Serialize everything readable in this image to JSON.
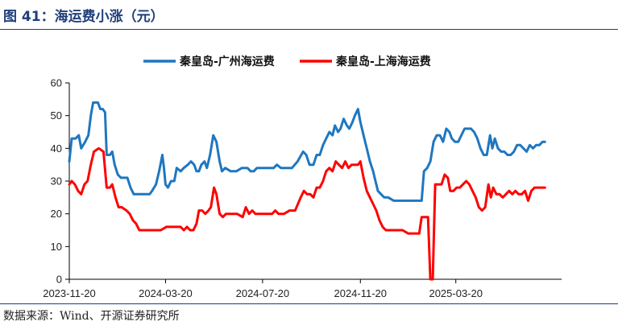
{
  "figure": {
    "title": "图 41：海运费小涨（元）",
    "source": "数据来源：Wind、开源证券研究所"
  },
  "chart_data": {
    "type": "line",
    "title": "",
    "xlabel": "",
    "ylabel": "",
    "ylim": [
      0,
      60
    ],
    "yticks": [
      0,
      10,
      20,
      30,
      40,
      50,
      60
    ],
    "xlim": [
      "2023-11-20",
      "2025-07-31"
    ],
    "xticks": [
      "2023-11-20",
      "2024-03-20",
      "2024-07-20",
      "2024-11-20",
      "2025-03-20"
    ],
    "grid": false,
    "legend_position": "top-center",
    "series": [
      {
        "name": "秦皇岛-广州海运费",
        "color": "#1f77c0",
        "points": [
          [
            "2023-11-20",
            36
          ],
          [
            "2023-11-23",
            43
          ],
          [
            "2023-11-28",
            43
          ],
          [
            "2023-12-02",
            44
          ],
          [
            "2023-12-05",
            40
          ],
          [
            "2023-12-10",
            42
          ],
          [
            "2023-12-14",
            44
          ],
          [
            "2023-12-17",
            50
          ],
          [
            "2023-12-20",
            54
          ],
          [
            "2023-12-26",
            54
          ],
          [
            "2023-12-29",
            52
          ],
          [
            "2024-01-01",
            52
          ],
          [
            "2024-01-04",
            51
          ],
          [
            "2024-01-06",
            38
          ],
          [
            "2024-01-10",
            38
          ],
          [
            "2024-01-13",
            39
          ],
          [
            "2024-01-16",
            35
          ],
          [
            "2024-01-20",
            32
          ],
          [
            "2024-01-24",
            31
          ],
          [
            "2024-01-28",
            31
          ],
          [
            "2024-02-01",
            31
          ],
          [
            "2024-02-05",
            28
          ],
          [
            "2024-02-09",
            26
          ],
          [
            "2024-02-15",
            26
          ],
          [
            "2024-02-22",
            26
          ],
          [
            "2024-02-29",
            26
          ],
          [
            "2024-03-03",
            27
          ],
          [
            "2024-03-08",
            29
          ],
          [
            "2024-03-12",
            33
          ],
          [
            "2024-03-16",
            38
          ],
          [
            "2024-03-18",
            34
          ],
          [
            "2024-03-20",
            29
          ],
          [
            "2024-03-23",
            28
          ],
          [
            "2024-03-27",
            30
          ],
          [
            "2024-03-31",
            30
          ],
          [
            "2024-04-03",
            34
          ],
          [
            "2024-04-08",
            33
          ],
          [
            "2024-04-12",
            34
          ],
          [
            "2024-04-17",
            35
          ],
          [
            "2024-04-21",
            36
          ],
          [
            "2024-04-25",
            35
          ],
          [
            "2024-04-28",
            33
          ],
          [
            "2024-05-01",
            33
          ],
          [
            "2024-05-04",
            35
          ],
          [
            "2024-05-08",
            36
          ],
          [
            "2024-05-11",
            34
          ],
          [
            "2024-05-15",
            38
          ],
          [
            "2024-05-19",
            44
          ],
          [
            "2024-05-23",
            42
          ],
          [
            "2024-05-27",
            36
          ],
          [
            "2024-05-30",
            33
          ],
          [
            "2024-06-03",
            34
          ],
          [
            "2024-06-10",
            33
          ],
          [
            "2024-06-17",
            33
          ],
          [
            "2024-06-24",
            34
          ],
          [
            "2024-07-01",
            34
          ],
          [
            "2024-07-05",
            33
          ],
          [
            "2024-07-09",
            33
          ],
          [
            "2024-07-13",
            34
          ],
          [
            "2024-07-20",
            34
          ],
          [
            "2024-07-27",
            34
          ],
          [
            "2024-08-03",
            34
          ],
          [
            "2024-08-07",
            35
          ],
          [
            "2024-08-12",
            34
          ],
          [
            "2024-08-19",
            34
          ],
          [
            "2024-08-26",
            34
          ],
          [
            "2024-09-02",
            36
          ],
          [
            "2024-09-09",
            39
          ],
          [
            "2024-09-13",
            38
          ],
          [
            "2024-09-17",
            35
          ],
          [
            "2024-09-22",
            35
          ],
          [
            "2024-09-26",
            38
          ],
          [
            "2024-09-30",
            38
          ],
          [
            "2024-10-04",
            41
          ],
          [
            "2024-10-08",
            43
          ],
          [
            "2024-10-12",
            45
          ],
          [
            "2024-10-16",
            44
          ],
          [
            "2024-10-19",
            47
          ],
          [
            "2024-10-23",
            45
          ],
          [
            "2024-10-26",
            46
          ],
          [
            "2024-10-30",
            49
          ],
          [
            "2024-11-03",
            47
          ],
          [
            "2024-11-06",
            46
          ],
          [
            "2024-11-10",
            48
          ],
          [
            "2024-11-13",
            50
          ],
          [
            "2024-11-17",
            52
          ],
          [
            "2024-11-20",
            48
          ],
          [
            "2024-11-24",
            44
          ],
          [
            "2024-11-28",
            40
          ],
          [
            "2024-12-02",
            36
          ],
          [
            "2024-12-06",
            33
          ],
          [
            "2024-12-09",
            30
          ],
          [
            "2024-12-12",
            27
          ],
          [
            "2024-12-16",
            26
          ],
          [
            "2024-12-20",
            25
          ],
          [
            "2024-12-25",
            25
          ],
          [
            "2025-01-01",
            24
          ],
          [
            "2025-01-08",
            24
          ],
          [
            "2025-01-15",
            24
          ],
          [
            "2025-01-22",
            24
          ],
          [
            "2025-01-29",
            24
          ],
          [
            "2025-02-05",
            24
          ],
          [
            "2025-02-08",
            33
          ],
          [
            "2025-02-12",
            34
          ],
          [
            "2025-02-16",
            36
          ],
          [
            "2025-02-20",
            42
          ],
          [
            "2025-02-24",
            44
          ],
          [
            "2025-02-28",
            44
          ],
          [
            "2025-03-04",
            42
          ],
          [
            "2025-03-08",
            46
          ],
          [
            "2025-03-12",
            45
          ],
          [
            "2025-03-15",
            43
          ],
          [
            "2025-03-19",
            42
          ],
          [
            "2025-03-23",
            42
          ],
          [
            "2025-03-27",
            44
          ],
          [
            "2025-03-31",
            46
          ],
          [
            "2025-04-04",
            46
          ],
          [
            "2025-04-08",
            46
          ],
          [
            "2025-04-12",
            45
          ],
          [
            "2025-04-16",
            43
          ],
          [
            "2025-04-20",
            40
          ],
          [
            "2025-04-24",
            38
          ],
          [
            "2025-04-28",
            38
          ],
          [
            "2025-05-02",
            44
          ],
          [
            "2025-05-05",
            40
          ],
          [
            "2025-05-08",
            43
          ],
          [
            "2025-05-12",
            40
          ],
          [
            "2025-05-16",
            39
          ],
          [
            "2025-05-20",
            39
          ],
          [
            "2025-05-24",
            38
          ],
          [
            "2025-05-28",
            38
          ],
          [
            "2025-06-01",
            39
          ],
          [
            "2025-06-05",
            41
          ],
          [
            "2025-06-09",
            41
          ],
          [
            "2025-06-13",
            40
          ],
          [
            "2025-06-17",
            39
          ],
          [
            "2025-06-21",
            41
          ],
          [
            "2025-06-25",
            40
          ],
          [
            "2025-06-29",
            41
          ],
          [
            "2025-07-03",
            41
          ],
          [
            "2025-07-07",
            42
          ],
          [
            "2025-07-10",
            42
          ]
        ]
      },
      {
        "name": "秦皇岛-上海海运费",
        "color": "#ff0000",
        "points": [
          [
            "2023-11-20",
            29
          ],
          [
            "2023-11-23",
            30
          ],
          [
            "2023-11-27",
            29
          ],
          [
            "2023-12-01",
            27
          ],
          [
            "2023-12-05",
            26
          ],
          [
            "2023-12-09",
            29
          ],
          [
            "2023-12-13",
            30
          ],
          [
            "2023-12-17",
            35
          ],
          [
            "2023-12-21",
            39
          ],
          [
            "2023-12-27",
            40
          ],
          [
            "2024-01-02",
            39
          ],
          [
            "2024-01-06",
            28
          ],
          [
            "2024-01-10",
            28
          ],
          [
            "2024-01-13",
            29
          ],
          [
            "2024-01-17",
            25
          ],
          [
            "2024-01-21",
            22
          ],
          [
            "2024-01-25",
            22
          ],
          [
            "2024-01-31",
            21
          ],
          [
            "2024-02-04",
            20
          ],
          [
            "2024-02-08",
            18
          ],
          [
            "2024-02-12",
            17
          ],
          [
            "2024-02-16",
            15
          ],
          [
            "2024-02-22",
            15
          ],
          [
            "2024-02-29",
            15
          ],
          [
            "2024-03-07",
            15
          ],
          [
            "2024-03-14",
            15
          ],
          [
            "2024-03-21",
            16
          ],
          [
            "2024-03-28",
            16
          ],
          [
            "2024-04-04",
            16
          ],
          [
            "2024-04-08",
            16
          ],
          [
            "2024-04-12",
            15
          ],
          [
            "2024-04-16",
            16
          ],
          [
            "2024-04-20",
            15
          ],
          [
            "2024-04-24",
            15
          ],
          [
            "2024-04-28",
            17
          ],
          [
            "2024-05-01",
            21
          ],
          [
            "2024-05-05",
            21
          ],
          [
            "2024-05-09",
            20
          ],
          [
            "2024-05-13",
            21
          ],
          [
            "2024-05-16",
            22
          ],
          [
            "2024-05-20",
            28
          ],
          [
            "2024-05-23",
            26
          ],
          [
            "2024-05-27",
            20
          ],
          [
            "2024-05-31",
            19
          ],
          [
            "2024-06-04",
            20
          ],
          [
            "2024-06-11",
            20
          ],
          [
            "2024-06-18",
            20
          ],
          [
            "2024-06-25",
            19
          ],
          [
            "2024-06-29",
            22
          ],
          [
            "2024-07-03",
            20
          ],
          [
            "2024-07-07",
            21
          ],
          [
            "2024-07-11",
            20
          ],
          [
            "2024-07-18",
            20
          ],
          [
            "2024-07-25",
            20
          ],
          [
            "2024-08-01",
            20
          ],
          [
            "2024-08-05",
            21
          ],
          [
            "2024-08-09",
            20
          ],
          [
            "2024-08-16",
            20
          ],
          [
            "2024-08-23",
            21
          ],
          [
            "2024-08-30",
            21
          ],
          [
            "2024-09-06",
            25
          ],
          [
            "2024-09-10",
            27
          ],
          [
            "2024-09-14",
            26
          ],
          [
            "2024-09-18",
            26
          ],
          [
            "2024-09-22",
            25
          ],
          [
            "2024-09-26",
            28
          ],
          [
            "2024-09-30",
            28
          ],
          [
            "2024-10-04",
            30
          ],
          [
            "2024-10-08",
            33
          ],
          [
            "2024-10-12",
            34
          ],
          [
            "2024-10-16",
            33
          ],
          [
            "2024-10-20",
            36
          ],
          [
            "2024-10-24",
            35
          ],
          [
            "2024-10-28",
            34
          ],
          [
            "2024-11-01",
            36
          ],
          [
            "2024-11-05",
            34
          ],
          [
            "2024-11-09",
            35
          ],
          [
            "2024-11-13",
            35
          ],
          [
            "2024-11-17",
            35
          ],
          [
            "2024-11-20",
            36
          ],
          [
            "2024-11-24",
            31
          ],
          [
            "2024-11-28",
            27
          ],
          [
            "2024-12-02",
            25
          ],
          [
            "2024-12-06",
            23
          ],
          [
            "2024-12-10",
            21
          ],
          [
            "2024-12-14",
            18
          ],
          [
            "2024-12-18",
            16
          ],
          [
            "2024-12-22",
            15
          ],
          [
            "2024-12-29",
            15
          ],
          [
            "2025-01-05",
            15
          ],
          [
            "2025-01-12",
            15
          ],
          [
            "2025-01-19",
            14
          ],
          [
            "2025-01-26",
            14
          ],
          [
            "2025-02-02",
            14
          ],
          [
            "2025-02-05",
            19
          ],
          [
            "2025-02-09",
            19
          ],
          [
            "2025-02-13",
            19
          ],
          [
            "2025-02-16",
            0
          ],
          [
            "2025-02-19",
            0
          ],
          [
            "2025-02-22",
            29
          ],
          [
            "2025-02-26",
            29
          ],
          [
            "2025-03-02",
            29
          ],
          [
            "2025-03-06",
            32
          ],
          [
            "2025-03-10",
            31
          ],
          [
            "2025-03-13",
            27
          ],
          [
            "2025-03-17",
            27
          ],
          [
            "2025-03-21",
            28
          ],
          [
            "2025-03-25",
            28
          ],
          [
            "2025-03-29",
            29
          ],
          [
            "2025-04-02",
            30
          ],
          [
            "2025-04-06",
            29
          ],
          [
            "2025-04-10",
            27
          ],
          [
            "2025-04-14",
            25
          ],
          [
            "2025-04-18",
            22
          ],
          [
            "2025-04-22",
            21
          ],
          [
            "2025-04-26",
            22
          ],
          [
            "2025-04-30",
            29
          ],
          [
            "2025-05-03",
            25
          ],
          [
            "2025-05-06",
            28
          ],
          [
            "2025-05-10",
            26
          ],
          [
            "2025-05-14",
            26
          ],
          [
            "2025-05-18",
            25
          ],
          [
            "2025-05-22",
            26
          ],
          [
            "2025-05-26",
            27
          ],
          [
            "2025-05-30",
            26
          ],
          [
            "2025-06-03",
            27
          ],
          [
            "2025-06-07",
            26
          ],
          [
            "2025-06-11",
            26
          ],
          [
            "2025-06-15",
            27
          ],
          [
            "2025-06-19",
            24
          ],
          [
            "2025-06-23",
            27
          ],
          [
            "2025-06-27",
            28
          ],
          [
            "2025-07-01",
            28
          ],
          [
            "2025-07-05",
            28
          ],
          [
            "2025-07-10",
            28
          ]
        ]
      }
    ]
  }
}
